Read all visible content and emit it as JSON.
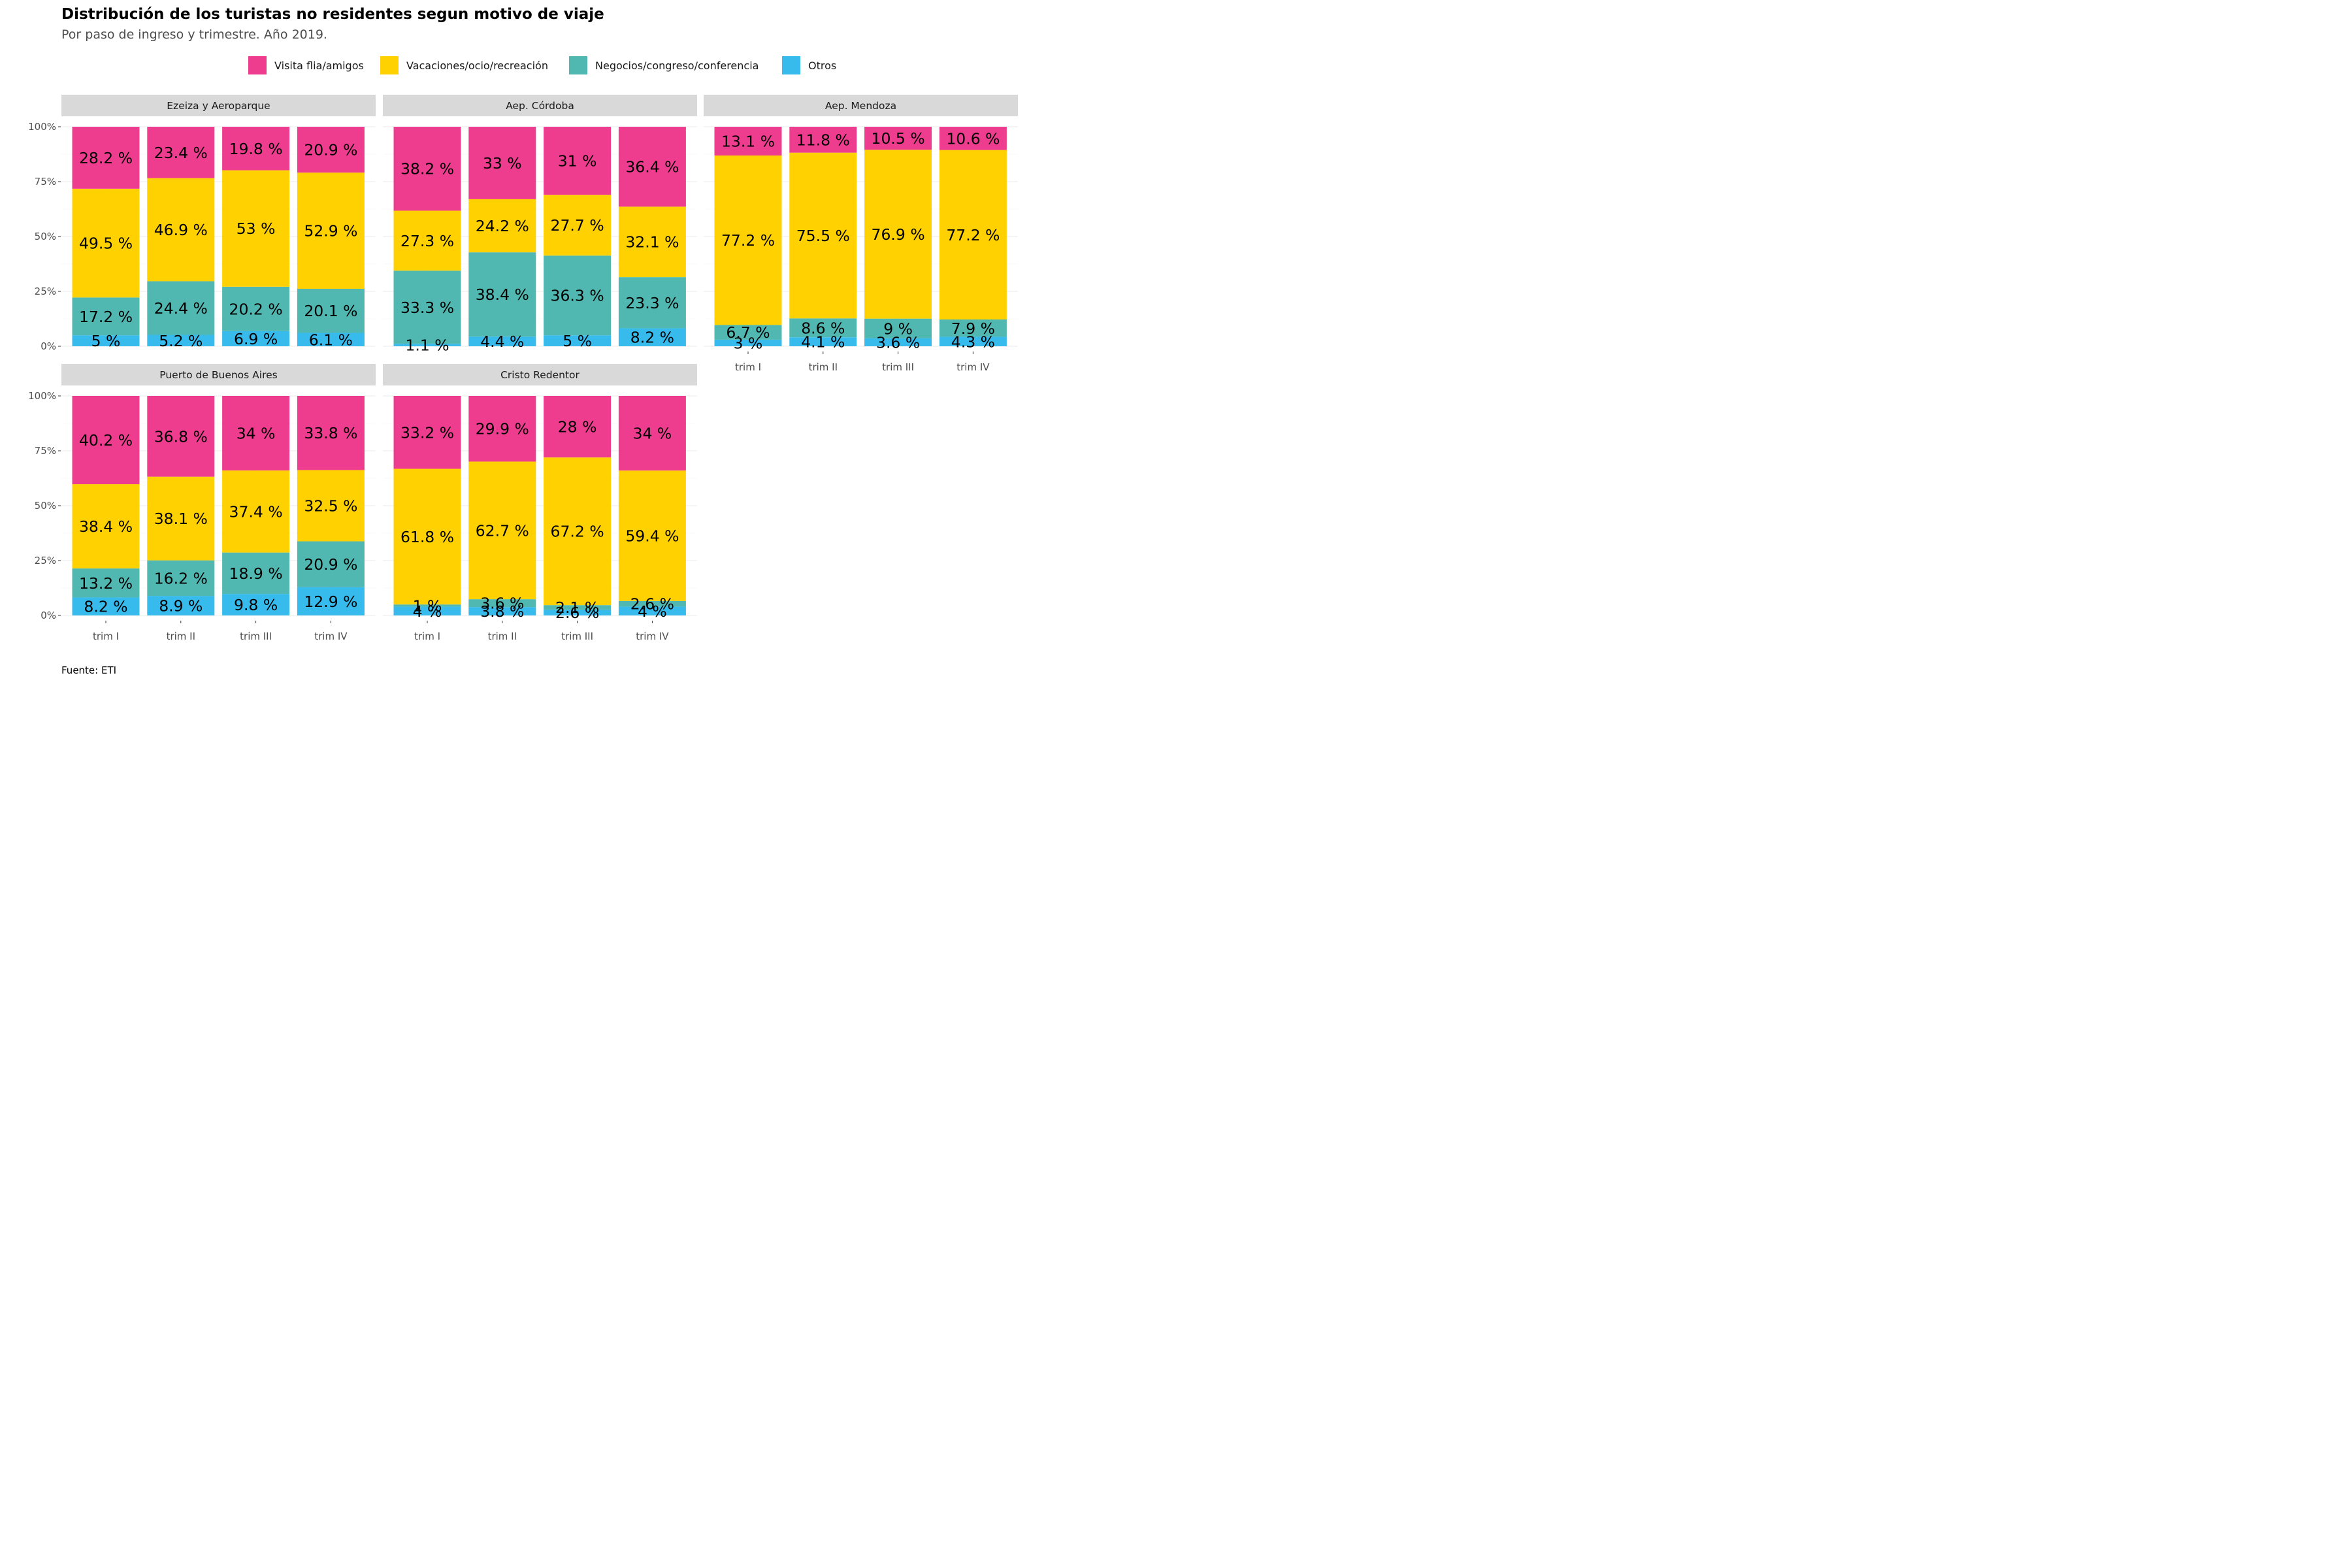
{
  "title": "Distribución de los turistas no residentes segun motivo de viaje",
  "subtitle": "Por paso de ingreso y trimestre. Año 2019.",
  "caption": "Fuente: ETI",
  "legend": [
    {
      "label": "Visita flia/amigos",
      "color": "#EE3D8F"
    },
    {
      "label": "Vacaciones/ocio/recreación",
      "color": "#FFD100"
    },
    {
      "label": "Negocios/congreso/conferencia",
      "color": "#50B8B1"
    },
    {
      "label": "Otros",
      "color": "#37BBED"
    }
  ],
  "chart_data": {
    "type": "bar",
    "stacked": true,
    "normalized": true,
    "categories": [
      "trim I",
      "trim II",
      "trim III",
      "trim IV"
    ],
    "y_ticks": [
      "0%",
      "25%",
      "50%",
      "75%",
      "100%"
    ],
    "ylim": [
      0,
      1
    ],
    "series_order_bottom_to_top": [
      "Otros",
      "Negocios/congreso/conferencia",
      "Vacaciones/ocio/recreación",
      "Visita flia/amigos"
    ],
    "panels": [
      {
        "title": "Ezeiza y Aeroparque",
        "bars": [
          {
            "otros": 5,
            "negocios": 17.2,
            "vacaciones": 49.5,
            "visita": 28.2,
            "labels": {
              "otros": "5 %",
              "negocios": "17.2 %",
              "vacaciones": "49.5 %",
              "visita": "28.2 %"
            }
          },
          {
            "otros": 5.2,
            "negocios": 24.4,
            "vacaciones": 46.9,
            "visita": 23.4,
            "labels": {
              "otros": "5.2 %",
              "negocios": "24.4 %",
              "vacaciones": "46.9 %",
              "visita": "23.4 %"
            }
          },
          {
            "otros": 6.9,
            "negocios": 20.2,
            "vacaciones": 53,
            "visita": 19.8,
            "labels": {
              "otros": "6.9 %",
              "negocios": "20.2 %",
              "vacaciones": "53 %",
              "visita": "19.8 %"
            }
          },
          {
            "otros": 6.1,
            "negocios": 20.1,
            "vacaciones": 52.9,
            "visita": 20.9,
            "labels": {
              "otros": "6.1 %",
              "negocios": "20.1 %",
              "vacaciones": "52.9 %",
              "visita": "20.9 %"
            }
          }
        ]
      },
      {
        "title": "Aep. Córdoba",
        "bars": [
          {
            "otros": 1.1,
            "negocios": 33.3,
            "vacaciones": 27.3,
            "visita": 38.2,
            "labels": {
              "otros": "1.1 %",
              "negocios": "33.3 %",
              "vacaciones": "27.3 %",
              "visita": "38.2 %"
            }
          },
          {
            "otros": 4.4,
            "negocios": 38.4,
            "vacaciones": 24.2,
            "visita": 33,
            "labels": {
              "otros": "4.4 %",
              "negocios": "38.4 %",
              "vacaciones": "24.2 %",
              "visita": "33 %"
            }
          },
          {
            "otros": 5,
            "negocios": 36.3,
            "vacaciones": 27.7,
            "visita": 31,
            "labels": {
              "otros": "5 %",
              "negocios": "36.3 %",
              "vacaciones": "27.7 %",
              "visita": "31 %"
            }
          },
          {
            "otros": 8.2,
            "negocios": 23.3,
            "vacaciones": 32.1,
            "visita": 36.4,
            "labels": {
              "otros": "8.2 %",
              "negocios": "23.3 %",
              "vacaciones": "32.1 %",
              "visita": "36.4 %"
            }
          }
        ]
      },
      {
        "title": "Aep. Mendoza",
        "bars": [
          {
            "otros": 3,
            "negocios": 6.7,
            "vacaciones": 77.2,
            "visita": 13.1,
            "labels": {
              "otros": "3 %",
              "negocios": "6.7 %",
              "vacaciones": "77.2 %",
              "visita": "13.1 %"
            }
          },
          {
            "otros": 4.1,
            "negocios": 8.6,
            "vacaciones": 75.5,
            "visita": 11.8,
            "labels": {
              "otros": "4.1 %",
              "negocios": "8.6 %",
              "vacaciones": "75.5 %",
              "visita": "11.8 %"
            }
          },
          {
            "otros": 3.6,
            "negocios": 9,
            "vacaciones": 76.9,
            "visita": 10.5,
            "labels": {
              "otros": "3.6 %",
              "negocios": "9 %",
              "vacaciones": "76.9 %",
              "visita": "10.5 %"
            }
          },
          {
            "otros": 4.3,
            "negocios": 7.9,
            "vacaciones": 77.2,
            "visita": 10.6,
            "labels": {
              "otros": "4.3 %",
              "negocios": "7.9 %",
              "vacaciones": "77.2 %",
              "visita": "10.6 %"
            }
          }
        ]
      },
      {
        "title": "Puerto de Buenos Aires",
        "bars": [
          {
            "otros": 8.2,
            "negocios": 13.2,
            "vacaciones": 38.4,
            "visita": 40.2,
            "labels": {
              "otros": "8.2 %",
              "negocios": "13.2 %",
              "vacaciones": "38.4 %",
              "visita": "40.2 %"
            }
          },
          {
            "otros": 8.9,
            "negocios": 16.2,
            "vacaciones": 38.1,
            "visita": 36.8,
            "labels": {
              "otros": "8.9 %",
              "negocios": "16.2 %",
              "vacaciones": "38.1 %",
              "visita": "36.8 %"
            }
          },
          {
            "otros": 9.8,
            "negocios": 18.9,
            "vacaciones": 37.4,
            "visita": 34,
            "labels": {
              "otros": "9.8 %",
              "negocios": "18.9 %",
              "vacaciones": "37.4 %",
              "visita": "34 %"
            }
          },
          {
            "otros": 12.9,
            "negocios": 20.9,
            "vacaciones": 32.5,
            "visita": 33.8,
            "labels": {
              "otros": "12.9 %",
              "negocios": "20.9 %",
              "vacaciones": "32.5 %",
              "visita": "33.8 %"
            }
          }
        ]
      },
      {
        "title": "Cristo Redentor",
        "bars": [
          {
            "otros": 4,
            "negocios": 1,
            "vacaciones": 61.8,
            "visita": 33.2,
            "labels": {
              "otros": "4 %",
              "negocios": "1 %",
              "vacaciones": "61.8 %",
              "visita": "33.2 %"
            }
          },
          {
            "otros": 3.8,
            "negocios": 3.6,
            "vacaciones": 62.7,
            "visita": 29.9,
            "labels": {
              "otros": "3.8 %",
              "negocios": "3.6 %",
              "vacaciones": "62.7 %",
              "visita": "29.9 %"
            }
          },
          {
            "otros": 2.6,
            "negocios": 2.1,
            "vacaciones": 67.2,
            "visita": 28,
            "labels": {
              "otros": "2.6 %",
              "negocios": "2.1 %",
              "vacaciones": "67.2 %",
              "visita": "28 %"
            }
          },
          {
            "otros": 4,
            "negocios": 2.6,
            "vacaciones": 59.4,
            "visita": 34,
            "labels": {
              "otros": "4 %",
              "negocios": "2.6 %",
              "vacaciones": "59.4 %",
              "visita": "34 %"
            }
          }
        ]
      }
    ]
  }
}
